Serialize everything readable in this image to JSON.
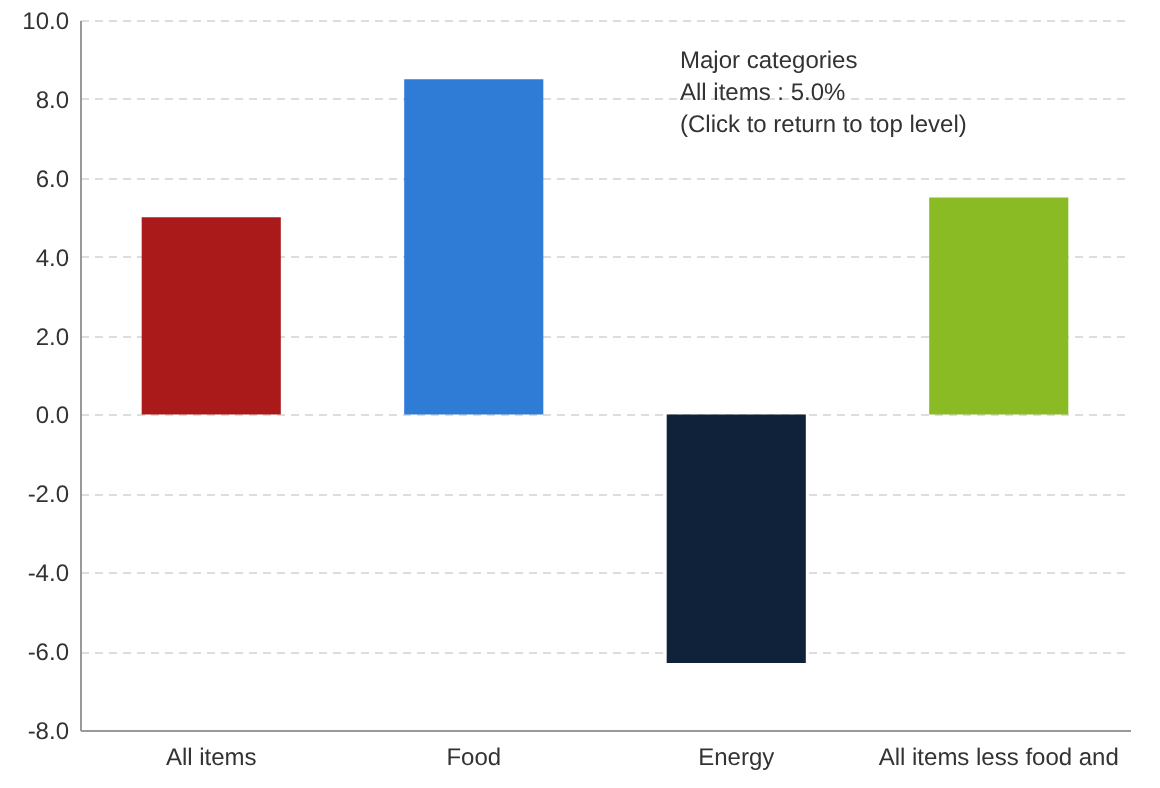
{
  "chart_data": {
    "type": "bar",
    "categories": [
      "All items",
      "Food",
      "Energy",
      "All items less food and"
    ],
    "values": [
      5.0,
      8.5,
      -6.3,
      5.5
    ],
    "colors": [
      "#aa1a1a",
      "#2e7cd6",
      "#0f2239",
      "#8aba24"
    ],
    "ylim": [
      -8,
      10
    ],
    "yticks": [
      {
        "value": -8,
        "label": "-8.0"
      },
      {
        "value": -6,
        "label": "-6.0"
      },
      {
        "value": -4,
        "label": "-4.0"
      },
      {
        "value": -2,
        "label": "-2.0"
      },
      {
        "value": 0,
        "label": "0.0"
      },
      {
        "value": 2,
        "label": "2.0"
      },
      {
        "value": 4,
        "label": "4.0"
      },
      {
        "value": 6,
        "label": "6.0"
      },
      {
        "value": 8,
        "label": "8.0"
      },
      {
        "value": 10,
        "label": "10.0"
      }
    ],
    "grid": "y",
    "annotations": [
      "Major categories",
      "All items : 5.0%",
      "(Click to return to top level)"
    ]
  }
}
